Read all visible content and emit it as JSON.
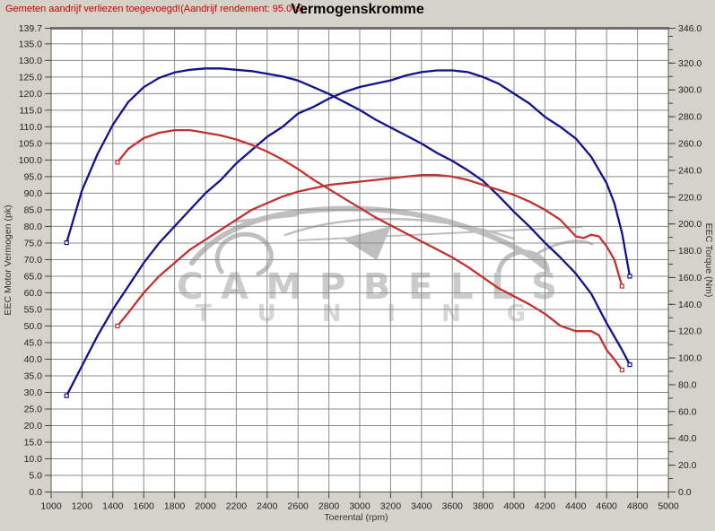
{
  "header": {
    "warning": "Gemeten aandrijf verliezen toegevoegd!(Aandrijf rendement: 95.0%)",
    "title": "Vermogenskromme"
  },
  "watermark": {
    "line1": "CAMPBELLS",
    "line2": "TUNING"
  },
  "colors": {
    "curve_blue": "#12128c",
    "curve_red": "#c23230",
    "grid": "#8c8c8c",
    "frame": "#5a5a5a",
    "warning_text": "#cc0000",
    "background": "#d5d2ca",
    "plot_background": "#ffffff"
  },
  "chart_data": {
    "type": "line",
    "title": "Vermogenskromme",
    "grid": true,
    "legend": "none",
    "x_axis": {
      "label": "Toerental (rpm)",
      "min": 1000,
      "max": 5000,
      "tick_step": 200,
      "tick_values": [
        1000,
        1200,
        1400,
        1600,
        1800,
        2000,
        2200,
        2400,
        2600,
        2800,
        3000,
        3200,
        3400,
        3600,
        3800,
        4000,
        4200,
        4400,
        4600,
        4800,
        5000
      ],
      "tick_labels": [
        "1000",
        "1200",
        "1400",
        "1600",
        "1800",
        "2000",
        "2200",
        "2400",
        "2600",
        "2800",
        "3000",
        "3200",
        "3400",
        "3600",
        "3800",
        "4000",
        "4200",
        "4400",
        "4600",
        "4800",
        "5000"
      ]
    },
    "left_axis": {
      "label": "EEC Motor Vermogen (pk)",
      "min": 0,
      "max": 139.7,
      "tick_step": 5,
      "tick_values": [
        0,
        5,
        10,
        15,
        20,
        25,
        30,
        35,
        40,
        45,
        50,
        55,
        60,
        65,
        70,
        75,
        80,
        85,
        90,
        95,
        100,
        105,
        110,
        115,
        120,
        125,
        130,
        135,
        139.7
      ],
      "tick_labels": [
        "0.0",
        "5.0",
        "10.0",
        "15.0",
        "20.0",
        "25.0",
        "30.0",
        "35.0",
        "40.0",
        "45.0",
        "50.0",
        "55.0",
        "60.0",
        "65.0",
        "70.0",
        "75.0",
        "80.0",
        "85.0",
        "90.0",
        "95.0",
        "100.0",
        "105.0",
        "110.0",
        "115.0",
        "120.0",
        "125.0",
        "130.0",
        "135.0",
        "139.7"
      ]
    },
    "right_axis": {
      "label": "EEC Torque (Nm)",
      "min": 0,
      "max": 346,
      "tick_step": 20,
      "minor_tick_step": 10,
      "tick_values": [
        0,
        20,
        40,
        60,
        80,
        100,
        120,
        140,
        160,
        180,
        200,
        220,
        240,
        260,
        280,
        300,
        320,
        346
      ],
      "tick_labels": [
        "0.0",
        "20.0",
        "40.0",
        "60.0",
        "80.0",
        "100.0",
        "120.0",
        "140.0",
        "160.0",
        "180.0",
        "200.0",
        "220.0",
        "240.0",
        "260.0",
        "280.0",
        "300.0",
        "320.0",
        "346.0"
      ]
    },
    "series": [
      {
        "name": "vermogen-blauw",
        "unit": "pk",
        "axis": "left",
        "color": "#12128c",
        "points": [
          [
            1100,
            29
          ],
          [
            1200,
            38
          ],
          [
            1300,
            47
          ],
          [
            1400,
            55
          ],
          [
            1500,
            62
          ],
          [
            1600,
            69
          ],
          [
            1700,
            75
          ],
          [
            1800,
            80
          ],
          [
            1900,
            85
          ],
          [
            2000,
            90
          ],
          [
            2100,
            94
          ],
          [
            2200,
            99
          ],
          [
            2300,
            103
          ],
          [
            2400,
            107
          ],
          [
            2500,
            110
          ],
          [
            2600,
            114
          ],
          [
            2700,
            116
          ],
          [
            2800,
            118.5
          ],
          [
            2900,
            120.5
          ],
          [
            3000,
            122
          ],
          [
            3100,
            123
          ],
          [
            3200,
            124
          ],
          [
            3300,
            125.5
          ],
          [
            3400,
            126.5
          ],
          [
            3500,
            127
          ],
          [
            3600,
            127
          ],
          [
            3700,
            126.5
          ],
          [
            3800,
            125
          ],
          [
            3900,
            123
          ],
          [
            4000,
            120
          ],
          [
            4100,
            117
          ],
          [
            4200,
            113
          ],
          [
            4300,
            110
          ],
          [
            4400,
            106.5
          ],
          [
            4500,
            101
          ],
          [
            4600,
            93
          ],
          [
            4650,
            87
          ],
          [
            4700,
            78
          ],
          [
            4750,
            65
          ]
        ]
      },
      {
        "name": "koppel-blauw",
        "unit": "Nm",
        "axis": "right",
        "color": "#12128c",
        "points": [
          [
            1100,
            186
          ],
          [
            1200,
            225
          ],
          [
            1300,
            252
          ],
          [
            1400,
            274
          ],
          [
            1500,
            291
          ],
          [
            1600,
            302
          ],
          [
            1700,
            309
          ],
          [
            1800,
            313
          ],
          [
            1900,
            315
          ],
          [
            2000,
            316
          ],
          [
            2100,
            316
          ],
          [
            2200,
            315
          ],
          [
            2300,
            314
          ],
          [
            2400,
            312
          ],
          [
            2500,
            310
          ],
          [
            2600,
            307
          ],
          [
            2700,
            302
          ],
          [
            2800,
            297
          ],
          [
            2900,
            291
          ],
          [
            3000,
            285
          ],
          [
            3100,
            278
          ],
          [
            3200,
            272
          ],
          [
            3300,
            266
          ],
          [
            3400,
            260
          ],
          [
            3500,
            253
          ],
          [
            3600,
            247
          ],
          [
            3700,
            240
          ],
          [
            3800,
            232
          ],
          [
            3900,
            221
          ],
          [
            4000,
            209
          ],
          [
            4100,
            198
          ],
          [
            4200,
            186
          ],
          [
            4300,
            175
          ],
          [
            4400,
            163
          ],
          [
            4500,
            148
          ],
          [
            4600,
            126
          ],
          [
            4650,
            116
          ],
          [
            4700,
            106
          ],
          [
            4750,
            95
          ]
        ]
      },
      {
        "name": "vermogen-rood",
        "unit": "pk",
        "axis": "left",
        "color": "#c23230",
        "points": [
          [
            1430,
            50
          ],
          [
            1500,
            54
          ],
          [
            1600,
            60
          ],
          [
            1700,
            65
          ],
          [
            1800,
            69
          ],
          [
            1900,
            73
          ],
          [
            2000,
            76
          ],
          [
            2100,
            79
          ],
          [
            2200,
            82
          ],
          [
            2300,
            85
          ],
          [
            2400,
            87
          ],
          [
            2500,
            89
          ],
          [
            2600,
            90.5
          ],
          [
            2700,
            91.5
          ],
          [
            2800,
            92.5
          ],
          [
            2900,
            93
          ],
          [
            3000,
            93.5
          ],
          [
            3100,
            94
          ],
          [
            3200,
            94.5
          ],
          [
            3300,
            95
          ],
          [
            3400,
            95.5
          ],
          [
            3500,
            95.5
          ],
          [
            3600,
            95
          ],
          [
            3700,
            94
          ],
          [
            3800,
            92.5
          ],
          [
            3900,
            91
          ],
          [
            4000,
            89.5
          ],
          [
            4100,
            87.5
          ],
          [
            4200,
            85
          ],
          [
            4300,
            82
          ],
          [
            4400,
            77
          ],
          [
            4450,
            76.5
          ],
          [
            4500,
            77.5
          ],
          [
            4550,
            77
          ],
          [
            4600,
            74
          ],
          [
            4650,
            70
          ],
          [
            4700,
            62
          ]
        ]
      },
      {
        "name": "koppel-rood",
        "unit": "Nm",
        "axis": "right",
        "color": "#c23230",
        "points": [
          [
            1430,
            246
          ],
          [
            1500,
            256
          ],
          [
            1600,
            264
          ],
          [
            1700,
            268
          ],
          [
            1800,
            270
          ],
          [
            1900,
            270
          ],
          [
            2000,
            268
          ],
          [
            2100,
            266
          ],
          [
            2200,
            263
          ],
          [
            2300,
            259
          ],
          [
            2400,
            254
          ],
          [
            2500,
            248
          ],
          [
            2600,
            241
          ],
          [
            2700,
            233
          ],
          [
            2800,
            226
          ],
          [
            2900,
            219
          ],
          [
            3000,
            212
          ],
          [
            3100,
            205
          ],
          [
            3200,
            199
          ],
          [
            3300,
            193
          ],
          [
            3400,
            187
          ],
          [
            3500,
            181
          ],
          [
            3600,
            175
          ],
          [
            3700,
            168
          ],
          [
            3800,
            160
          ],
          [
            3900,
            152
          ],
          [
            4000,
            146
          ],
          [
            4100,
            140
          ],
          [
            4200,
            133
          ],
          [
            4300,
            124
          ],
          [
            4400,
            120
          ],
          [
            4500,
            120
          ],
          [
            4550,
            117
          ],
          [
            4600,
            106
          ],
          [
            4650,
            99
          ],
          [
            4700,
            91
          ]
        ]
      }
    ]
  }
}
